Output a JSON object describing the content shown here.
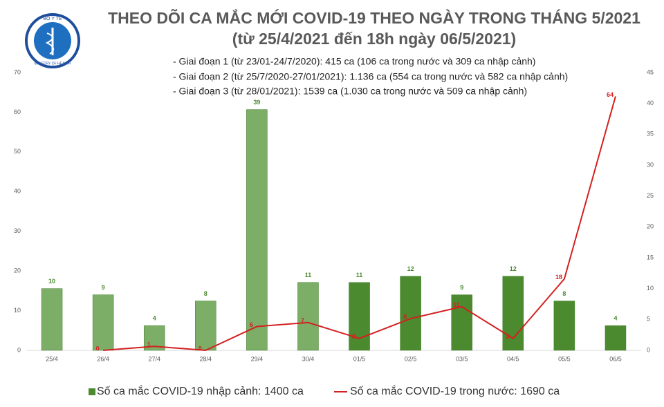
{
  "chart_data": {
    "type": "bar_line",
    "title": "THEO DÕI CA MẮC MỚI COVID-19 THEO NGÀY TRONG THÁNG 5/2021",
    "subtitle": "(từ 25/4/2021 đến 18h ngày 06/5/2021)",
    "logo": {
      "top": "BỘ Y TẾ",
      "bottom": "MINISTRY OF HEALTH"
    },
    "annotations": [
      "- Giai đoạn 1 (từ 23/01-24/7/2020): 415 ca (106 ca trong nước và 309 ca nhập cảnh)",
      "- Giai đoạn 2 (từ 25/7/2020-27/01/2021): 1.136 ca (554 ca trong nước và 582 ca nhập cảnh)",
      "- Giai đoạn 3 (từ 28/01/2021): 1539 ca (1.030 ca trong nước và 509 ca nhập cảnh)"
    ],
    "categories": [
      "25/4",
      "26/4",
      "27/4",
      "28/4",
      "29/4",
      "30/4",
      "01/5",
      "02/5",
      "03/5",
      "04/5",
      "05/5",
      "06/5"
    ],
    "series": [
      {
        "name": "Số ca mắc COVID-19 nhập cảnh: 1400 ca",
        "type": "bar",
        "axis": "y2",
        "color": "#4b8a2f",
        "colors": [
          "#7cae67",
          "#7cae67",
          "#7cae67",
          "#7cae67",
          "#7cae67",
          "#7cae67",
          "#4b8a2f",
          "#4b8a2f",
          "#4b8a2f",
          "#4b8a2f",
          "#4b8a2f",
          "#4b8a2f"
        ],
        "values": [
          10,
          9,
          4,
          8,
          39,
          11,
          11,
          12,
          9,
          12,
          8,
          4
        ]
      },
      {
        "name": "Số ca mắc COVID-19 trong nước: 1690 ca",
        "type": "line",
        "axis": "y",
        "color": "#d42020",
        "values": [
          null,
          0,
          1,
          0,
          6,
          7,
          3,
          8,
          11,
          3,
          18,
          64
        ]
      }
    ],
    "ylim": [
      0,
      70
    ],
    "yticks": [
      0,
      10,
      20,
      30,
      40,
      50,
      60,
      70
    ],
    "y2lim": [
      0,
      45
    ],
    "y2ticks": [
      0,
      5,
      10,
      15,
      20,
      25,
      30,
      35,
      40,
      45
    ]
  }
}
